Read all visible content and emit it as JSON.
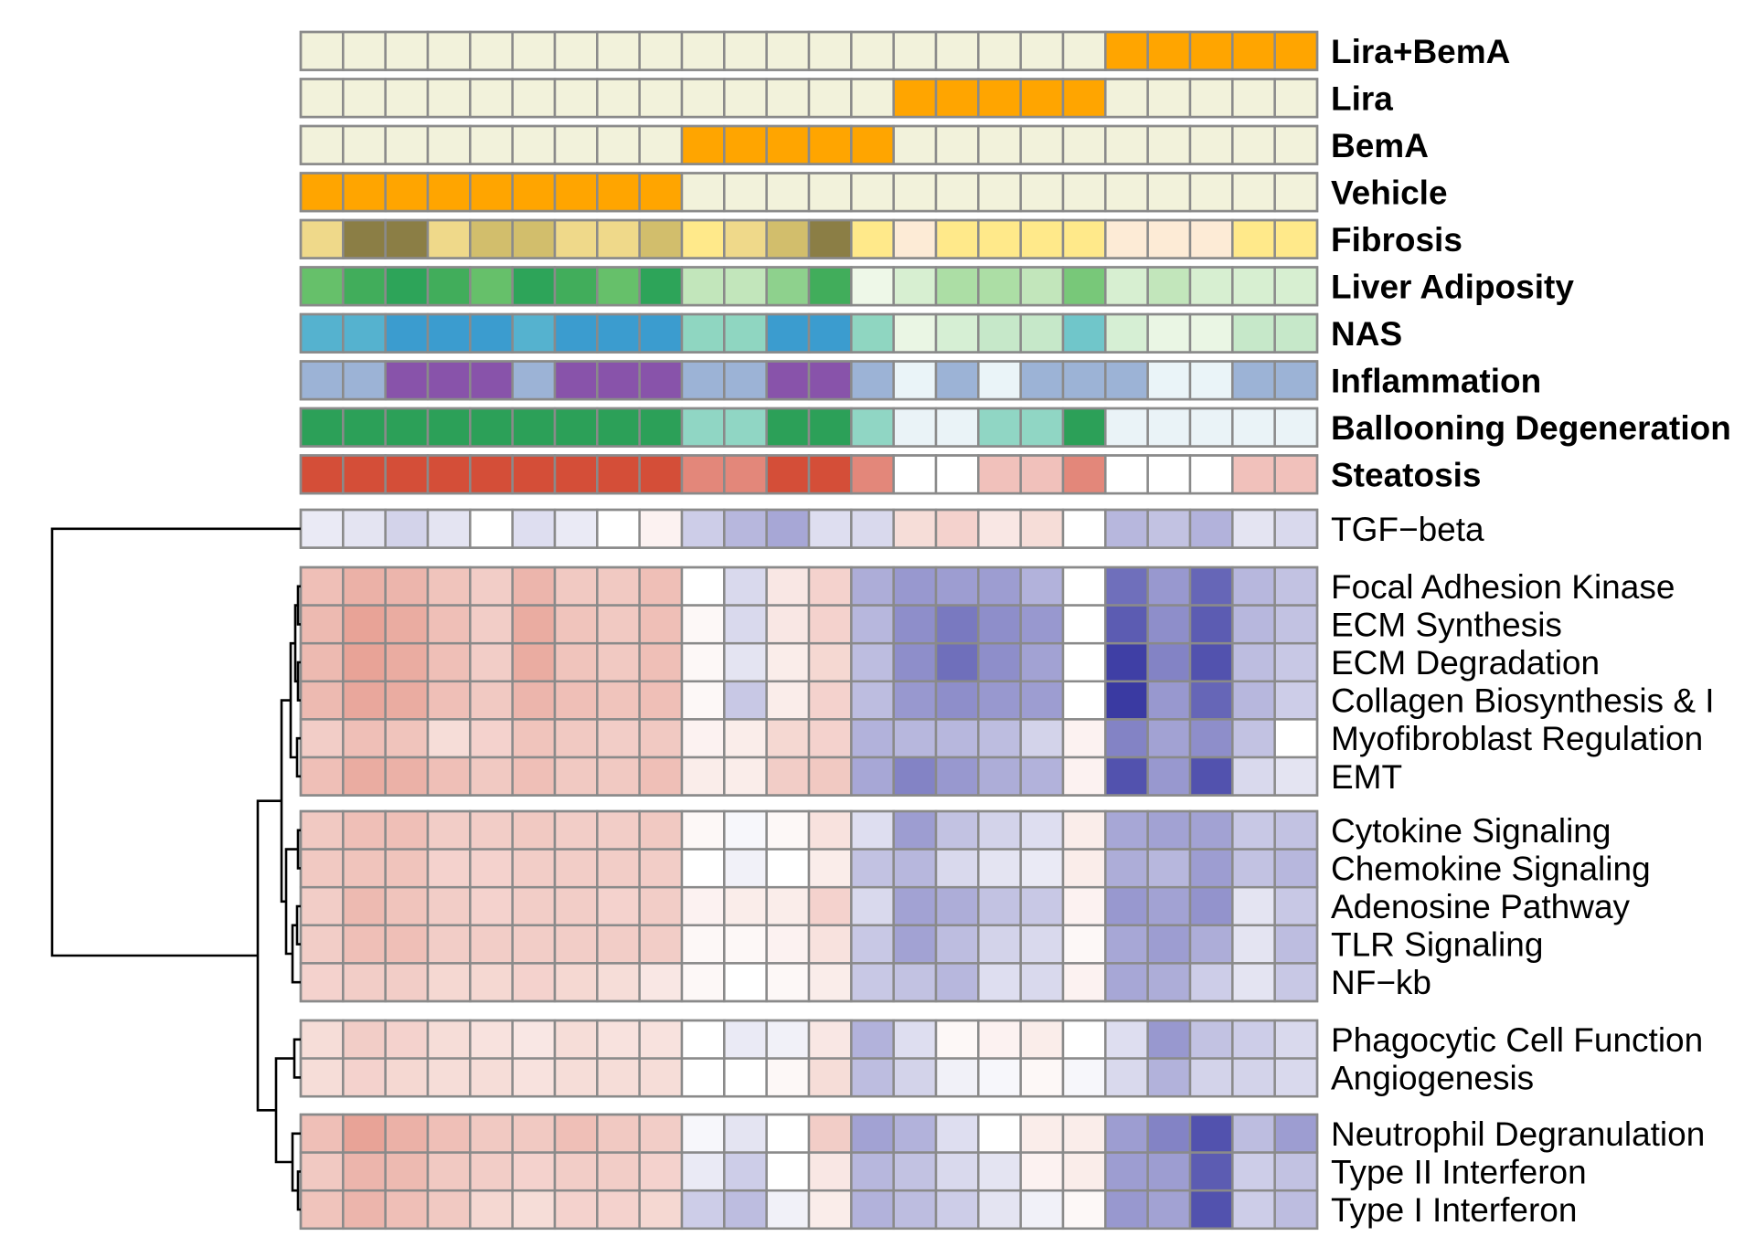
{
  "chart_data": {
    "type": "heatmap",
    "annotation_rows": [
      {
        "name": "Lira+BemA",
        "levels": [
          0,
          0,
          0,
          0,
          0,
          0,
          0,
          0,
          0,
          0,
          0,
          0,
          0,
          0,
          0,
          0,
          0,
          0,
          0,
          1,
          1,
          1,
          1,
          1
        ]
      },
      {
        "name": "Lira",
        "levels": [
          0,
          0,
          0,
          0,
          0,
          0,
          0,
          0,
          0,
          0,
          0,
          0,
          0,
          0,
          1,
          1,
          1,
          1,
          1,
          0,
          0,
          0,
          0,
          0
        ]
      },
      {
        "name": "BemA",
        "levels": [
          0,
          0,
          0,
          0,
          0,
          0,
          0,
          0,
          0,
          1,
          1,
          1,
          1,
          1,
          0,
          0,
          0,
          0,
          0,
          0,
          0,
          0,
          0,
          0
        ]
      },
      {
        "name": "Vehicle",
        "levels": [
          1,
          1,
          1,
          1,
          1,
          1,
          1,
          1,
          1,
          0,
          0,
          0,
          0,
          0,
          0,
          0,
          0,
          0,
          0,
          0,
          0,
          0,
          0,
          0
        ]
      },
      {
        "name": "Fibrosis",
        "levels": [
          2,
          4,
          4,
          2,
          3,
          3,
          2,
          2,
          3,
          1,
          2,
          3,
          4,
          1,
          0,
          1,
          1,
          1,
          1,
          0,
          0,
          0,
          1,
          1
        ]
      },
      {
        "name": "Liver Adiposity",
        "levels": [
          6,
          7,
          8,
          7,
          6,
          8,
          7,
          6,
          8,
          2,
          2,
          4,
          7,
          0,
          1,
          3,
          3,
          2,
          5,
          1,
          2,
          1,
          1,
          1
        ]
      },
      {
        "name": "NAS",
        "levels": [
          6,
          6,
          7,
          7,
          7,
          6,
          7,
          7,
          7,
          4,
          4,
          7,
          7,
          4,
          1,
          2,
          3,
          3,
          5,
          2,
          1,
          1,
          3,
          3
        ]
      },
      {
        "name": "Inflammation",
        "levels": [
          1,
          1,
          2,
          2,
          2,
          1,
          2,
          2,
          2,
          1,
          1,
          2,
          2,
          1,
          0,
          1,
          0,
          1,
          1,
          1,
          0,
          0,
          1,
          1
        ]
      },
      {
        "name": "Ballooning Degeneration",
        "levels": [
          2,
          2,
          2,
          2,
          2,
          2,
          2,
          2,
          2,
          1,
          1,
          2,
          2,
          1,
          0,
          0,
          1,
          1,
          2,
          0,
          0,
          0,
          0,
          0
        ]
      },
      {
        "name": "Steatosis",
        "levels": [
          3,
          3,
          3,
          3,
          3,
          3,
          3,
          3,
          3,
          2,
          2,
          3,
          3,
          2,
          0,
          0,
          1,
          1,
          2,
          0,
          0,
          0,
          1,
          1
        ]
      }
    ],
    "rows": [
      "TGF−beta",
      "Focal Adhesion Kinase",
      "ECM Synthesis",
      "ECM Degradation",
      "Collagen Biosynthesis & I",
      "Myofibroblast Regulation",
      "EMT",
      "Cytokine Signaling",
      "Chemokine Signaling",
      "Adenosine Pathway",
      "TLR Signaling",
      "NF−kb",
      "Phagocytic Cell Function",
      "Angiogenesis",
      "Neutrophil Degranulation",
      "Type II Interferon",
      "Type I Interferon"
    ],
    "row_groups": [
      [
        0
      ],
      [
        1,
        2,
        3,
        4,
        5,
        6
      ],
      [
        7,
        8,
        9,
        10,
        11
      ],
      [
        12,
        13
      ],
      [
        14,
        15,
        16
      ]
    ],
    "values": [
      [
        -0.15,
        -0.2,
        -0.35,
        -0.2,
        0,
        -0.25,
        -0.15,
        0,
        0.1,
        -0.4,
        -0.6,
        -0.75,
        -0.25,
        -0.3,
        0.3,
        0.4,
        0.2,
        0.3,
        0,
        -0.6,
        -0.5,
        -0.65,
        -0.2,
        -0.3
      ],
      [
        0.6,
        0.75,
        0.7,
        0.55,
        0.45,
        0.7,
        0.5,
        0.5,
        0.6,
        0,
        -0.3,
        0.2,
        0.4,
        -0.7,
        -0.9,
        -0.85,
        -0.85,
        -0.65,
        0,
        -1.3,
        -0.9,
        -1.4,
        -0.6,
        -0.5
      ],
      [
        0.65,
        0.9,
        0.8,
        0.6,
        0.45,
        0.8,
        0.55,
        0.5,
        0.6,
        0.05,
        -0.3,
        0.2,
        0.4,
        -0.6,
        -1.0,
        -1.2,
        -1.0,
        -0.9,
        0,
        -1.5,
        -1.0,
        -1.5,
        -0.6,
        -0.5
      ],
      [
        0.65,
        0.9,
        0.8,
        0.6,
        0.45,
        0.8,
        0.55,
        0.5,
        0.6,
        0.05,
        -0.2,
        0.15,
        0.35,
        -0.55,
        -1.0,
        -1.3,
        -1.0,
        -0.8,
        0,
        -1.8,
        -1.1,
        -1.6,
        -0.55,
        -0.45
      ],
      [
        0.65,
        0.85,
        0.8,
        0.6,
        0.5,
        0.7,
        0.6,
        0.55,
        0.6,
        0.05,
        -0.45,
        0.15,
        0.4,
        -0.55,
        -0.9,
        -1.0,
        -0.9,
        -0.85,
        0,
        -1.85,
        -0.9,
        -1.4,
        -0.6,
        -0.4
      ],
      [
        0.45,
        0.6,
        0.55,
        0.3,
        0.4,
        0.55,
        0.5,
        0.45,
        0.5,
        0.1,
        0.15,
        0.35,
        0.4,
        -0.65,
        -0.6,
        -0.6,
        -0.55,
        -0.35,
        0.1,
        -1.1,
        -0.8,
        -1.0,
        -0.5,
        0
      ],
      [
        0.6,
        0.8,
        0.75,
        0.6,
        0.5,
        0.6,
        0.5,
        0.5,
        0.6,
        0.15,
        0.15,
        0.45,
        0.5,
        -0.75,
        -1.1,
        -0.9,
        -0.7,
        -0.65,
        0.1,
        -1.6,
        -0.9,
        -1.6,
        -0.3,
        -0.2
      ],
      [
        0.5,
        0.6,
        0.6,
        0.45,
        0.45,
        0.5,
        0.45,
        0.45,
        0.5,
        0.05,
        -0.05,
        0.05,
        0.25,
        -0.25,
        -0.85,
        -0.5,
        -0.35,
        -0.25,
        0.15,
        -0.75,
        -0.8,
        -0.8,
        -0.45,
        -0.5
      ],
      [
        0.5,
        0.55,
        0.55,
        0.4,
        0.4,
        0.45,
        0.45,
        0.45,
        0.45,
        0,
        -0.1,
        0,
        0.15,
        -0.5,
        -0.6,
        -0.3,
        -0.2,
        -0.15,
        0.15,
        -0.7,
        -0.6,
        -0.85,
        -0.5,
        -0.6
      ],
      [
        0.45,
        0.65,
        0.55,
        0.45,
        0.4,
        0.45,
        0.45,
        0.4,
        0.45,
        0.1,
        0.15,
        0.15,
        0.4,
        -0.3,
        -0.8,
        -0.7,
        -0.5,
        -0.45,
        0.1,
        -0.9,
        -0.8,
        -0.95,
        -0.2,
        -0.45
      ],
      [
        0.45,
        0.6,
        0.6,
        0.45,
        0.45,
        0.45,
        0.45,
        0.45,
        0.45,
        0.05,
        0.05,
        0.1,
        0.25,
        -0.45,
        -0.8,
        -0.55,
        -0.35,
        -0.3,
        0.05,
        -0.75,
        -0.85,
        -0.7,
        -0.2,
        -0.55
      ],
      [
        0.4,
        0.45,
        0.45,
        0.35,
        0.35,
        0.4,
        0.35,
        0.3,
        0.2,
        0.05,
        0,
        0.05,
        0.15,
        -0.45,
        -0.5,
        -0.6,
        -0.25,
        -0.3,
        0.1,
        -0.75,
        -0.7,
        -0.4,
        -0.2,
        -0.45
      ],
      [
        0.3,
        0.45,
        0.4,
        0.3,
        0.25,
        0.2,
        0.3,
        0.25,
        0.25,
        0,
        -0.15,
        -0.1,
        0.2,
        -0.65,
        -0.25,
        0.05,
        0.1,
        0.15,
        0,
        -0.25,
        -0.9,
        -0.5,
        -0.4,
        -0.3
      ],
      [
        0.3,
        0.4,
        0.35,
        0.3,
        0.3,
        0.25,
        0.3,
        0.3,
        0.3,
        0,
        0,
        0.05,
        0.3,
        -0.55,
        -0.35,
        -0.1,
        -0.05,
        0.05,
        -0.05,
        -0.3,
        -0.65,
        -0.35,
        -0.35,
        -0.3
      ],
      [
        0.6,
        0.9,
        0.75,
        0.6,
        0.5,
        0.5,
        0.6,
        0.5,
        0.45,
        -0.05,
        -0.2,
        0,
        0.45,
        -0.8,
        -0.65,
        -0.25,
        0,
        0.15,
        0.15,
        -0.85,
        -1.1,
        -1.6,
        -0.55,
        -0.85
      ],
      [
        0.5,
        0.7,
        0.65,
        0.5,
        0.45,
        0.4,
        0.45,
        0.45,
        0.4,
        -0.15,
        -0.4,
        0,
        0.2,
        -0.6,
        -0.5,
        -0.3,
        -0.2,
        0.1,
        0.15,
        -0.85,
        -0.85,
        -1.5,
        -0.4,
        -0.5
      ],
      [
        0.55,
        0.7,
        0.6,
        0.5,
        0.35,
        0.3,
        0.4,
        0.4,
        0.35,
        -0.4,
        -0.55,
        -0.1,
        0.15,
        -0.65,
        -0.55,
        -0.4,
        -0.2,
        -0.1,
        0.05,
        -0.9,
        -0.8,
        -1.6,
        -0.4,
        -0.55
      ]
    ],
    "colors": {
      "annotation_palettes": {
        "Lira+BemA": [
          "#f2f2db",
          "#ffa500"
        ],
        "Lira": [
          "#f2f2db",
          "#ffa500"
        ],
        "BemA": [
          "#f2f2db",
          "#ffa500"
        ],
        "Vehicle": [
          "#f2f2db",
          "#ffa500"
        ],
        "Fibrosis": [
          "#fdebd6",
          "#ffe98a",
          "#efd98a",
          "#d2be6c",
          "#8b7e45"
        ],
        "Liver Adiposity": [
          "#eef8e8",
          "#d7efd1",
          "#c2e6bb",
          "#acdea5",
          "#8ed18d",
          "#78c879",
          "#66c06a",
          "#41ad5b",
          "#2da459"
        ],
        "NAS": [
          "#f2f8ea",
          "#eaf6e4",
          "#d6efd4",
          "#c6e8c9",
          "#8fd6c1",
          "#70c6ca",
          "#55b2cf",
          "#3b9ccf"
        ],
        "Inflammation": [
          "#eaf4f8",
          "#9cb3d6",
          "#8853aa"
        ],
        "Ballooning Degeneration": [
          "#eaf3f7",
          "#90d6c4",
          "#2ca058"
        ],
        "Steatosis": [
          "#ffffff",
          "#f1c1bb",
          "#e3877a",
          "#d44e38"
        ]
      },
      "low": "#3535a0",
      "mid": "#ffffff",
      "high": "#d14a33",
      "cell_border": "#8a8a8a"
    }
  }
}
